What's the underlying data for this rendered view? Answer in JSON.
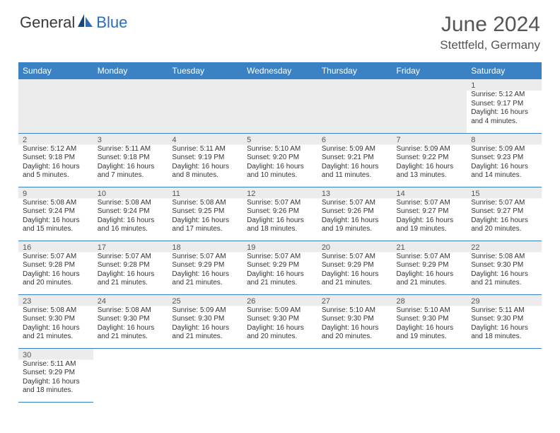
{
  "brand": {
    "part1": "General",
    "part2": "Blue"
  },
  "title": "June 2024",
  "location": "Stettfeld, Germany",
  "colors": {
    "header_bg": "#3b82c4",
    "header_text": "#ffffff",
    "shaded_bg": "#ececec",
    "border": "#3b82c4",
    "title_color": "#555555",
    "logo_blue": "#2a6db8",
    "logo_gray": "#3a3a3a"
  },
  "weekdays": [
    "Sunday",
    "Monday",
    "Tuesday",
    "Wednesday",
    "Thursday",
    "Friday",
    "Saturday"
  ],
  "weeks": [
    [
      null,
      null,
      null,
      null,
      null,
      null,
      {
        "n": "1",
        "sr": "Sunrise: 5:12 AM",
        "ss": "Sunset: 9:17 PM",
        "dl": "Daylight: 16 hours and 4 minutes."
      }
    ],
    [
      {
        "n": "2",
        "sr": "Sunrise: 5:12 AM",
        "ss": "Sunset: 9:18 PM",
        "dl": "Daylight: 16 hours and 5 minutes."
      },
      {
        "n": "3",
        "sr": "Sunrise: 5:11 AM",
        "ss": "Sunset: 9:18 PM",
        "dl": "Daylight: 16 hours and 7 minutes."
      },
      {
        "n": "4",
        "sr": "Sunrise: 5:11 AM",
        "ss": "Sunset: 9:19 PM",
        "dl": "Daylight: 16 hours and 8 minutes."
      },
      {
        "n": "5",
        "sr": "Sunrise: 5:10 AM",
        "ss": "Sunset: 9:20 PM",
        "dl": "Daylight: 16 hours and 10 minutes."
      },
      {
        "n": "6",
        "sr": "Sunrise: 5:09 AM",
        "ss": "Sunset: 9:21 PM",
        "dl": "Daylight: 16 hours and 11 minutes."
      },
      {
        "n": "7",
        "sr": "Sunrise: 5:09 AM",
        "ss": "Sunset: 9:22 PM",
        "dl": "Daylight: 16 hours and 13 minutes."
      },
      {
        "n": "8",
        "sr": "Sunrise: 5:09 AM",
        "ss": "Sunset: 9:23 PM",
        "dl": "Daylight: 16 hours and 14 minutes."
      }
    ],
    [
      {
        "n": "9",
        "sr": "Sunrise: 5:08 AM",
        "ss": "Sunset: 9:24 PM",
        "dl": "Daylight: 16 hours and 15 minutes."
      },
      {
        "n": "10",
        "sr": "Sunrise: 5:08 AM",
        "ss": "Sunset: 9:24 PM",
        "dl": "Daylight: 16 hours and 16 minutes."
      },
      {
        "n": "11",
        "sr": "Sunrise: 5:08 AM",
        "ss": "Sunset: 9:25 PM",
        "dl": "Daylight: 16 hours and 17 minutes."
      },
      {
        "n": "12",
        "sr": "Sunrise: 5:07 AM",
        "ss": "Sunset: 9:26 PM",
        "dl": "Daylight: 16 hours and 18 minutes."
      },
      {
        "n": "13",
        "sr": "Sunrise: 5:07 AM",
        "ss": "Sunset: 9:26 PM",
        "dl": "Daylight: 16 hours and 19 minutes."
      },
      {
        "n": "14",
        "sr": "Sunrise: 5:07 AM",
        "ss": "Sunset: 9:27 PM",
        "dl": "Daylight: 16 hours and 19 minutes."
      },
      {
        "n": "15",
        "sr": "Sunrise: 5:07 AM",
        "ss": "Sunset: 9:27 PM",
        "dl": "Daylight: 16 hours and 20 minutes."
      }
    ],
    [
      {
        "n": "16",
        "sr": "Sunrise: 5:07 AM",
        "ss": "Sunset: 9:28 PM",
        "dl": "Daylight: 16 hours and 20 minutes."
      },
      {
        "n": "17",
        "sr": "Sunrise: 5:07 AM",
        "ss": "Sunset: 9:28 PM",
        "dl": "Daylight: 16 hours and 21 minutes."
      },
      {
        "n": "18",
        "sr": "Sunrise: 5:07 AM",
        "ss": "Sunset: 9:29 PM",
        "dl": "Daylight: 16 hours and 21 minutes."
      },
      {
        "n": "19",
        "sr": "Sunrise: 5:07 AM",
        "ss": "Sunset: 9:29 PM",
        "dl": "Daylight: 16 hours and 21 minutes."
      },
      {
        "n": "20",
        "sr": "Sunrise: 5:07 AM",
        "ss": "Sunset: 9:29 PM",
        "dl": "Daylight: 16 hours and 21 minutes."
      },
      {
        "n": "21",
        "sr": "Sunrise: 5:07 AM",
        "ss": "Sunset: 9:29 PM",
        "dl": "Daylight: 16 hours and 21 minutes."
      },
      {
        "n": "22",
        "sr": "Sunrise: 5:08 AM",
        "ss": "Sunset: 9:30 PM",
        "dl": "Daylight: 16 hours and 21 minutes."
      }
    ],
    [
      {
        "n": "23",
        "sr": "Sunrise: 5:08 AM",
        "ss": "Sunset: 9:30 PM",
        "dl": "Daylight: 16 hours and 21 minutes."
      },
      {
        "n": "24",
        "sr": "Sunrise: 5:08 AM",
        "ss": "Sunset: 9:30 PM",
        "dl": "Daylight: 16 hours and 21 minutes."
      },
      {
        "n": "25",
        "sr": "Sunrise: 5:09 AM",
        "ss": "Sunset: 9:30 PM",
        "dl": "Daylight: 16 hours and 21 minutes."
      },
      {
        "n": "26",
        "sr": "Sunrise: 5:09 AM",
        "ss": "Sunset: 9:30 PM",
        "dl": "Daylight: 16 hours and 20 minutes."
      },
      {
        "n": "27",
        "sr": "Sunrise: 5:10 AM",
        "ss": "Sunset: 9:30 PM",
        "dl": "Daylight: 16 hours and 20 minutes."
      },
      {
        "n": "28",
        "sr": "Sunrise: 5:10 AM",
        "ss": "Sunset: 9:30 PM",
        "dl": "Daylight: 16 hours and 19 minutes."
      },
      {
        "n": "29",
        "sr": "Sunrise: 5:11 AM",
        "ss": "Sunset: 9:30 PM",
        "dl": "Daylight: 16 hours and 18 minutes."
      }
    ],
    [
      {
        "n": "30",
        "sr": "Sunrise: 5:11 AM",
        "ss": "Sunset: 9:29 PM",
        "dl": "Daylight: 16 hours and 18 minutes."
      },
      null,
      null,
      null,
      null,
      null,
      null
    ]
  ]
}
